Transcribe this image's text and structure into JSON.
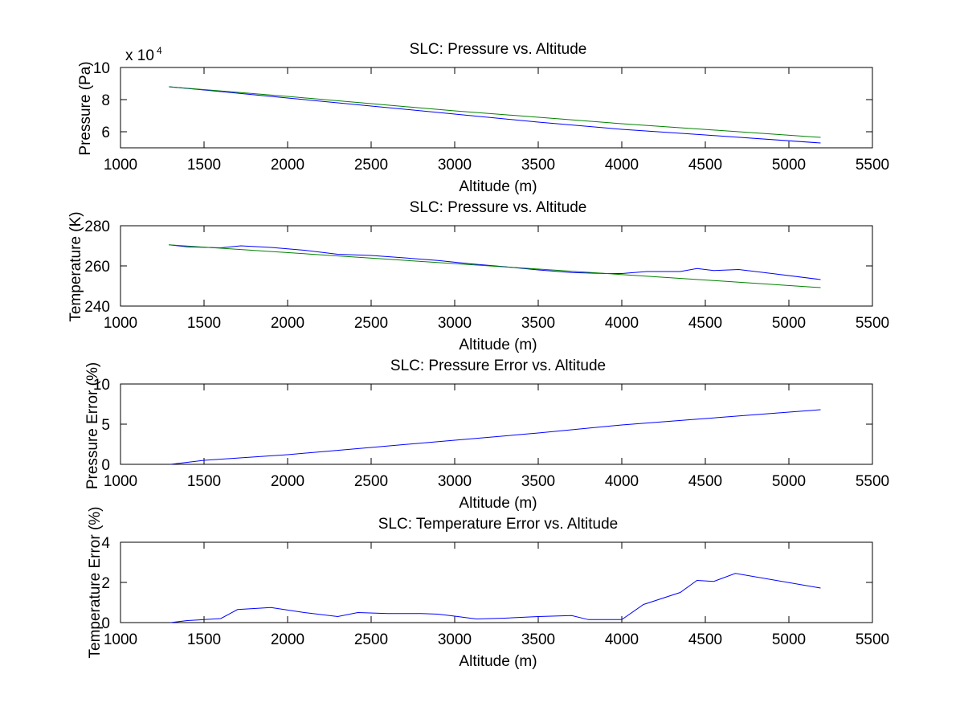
{
  "figure": {
    "background": "#ffffff"
  },
  "chart_data": [
    {
      "type": "line",
      "title": "SLC: Pressure vs. Altitude",
      "xlabel": "Altitude (m)",
      "ylabel": "Pressure (Pa)",
      "y_exponent_base": "x 10",
      "y_exponent_power": "4",
      "y_multiplier": 10000,
      "xlim": [
        1000,
        5500
      ],
      "ylim": [
        5,
        10
      ],
      "xticks": [
        1000,
        1500,
        2000,
        2500,
        3000,
        3500,
        4000,
        4500,
        5000,
        5500
      ],
      "yticks": [
        6,
        8,
        10
      ],
      "grid": false,
      "series": [
        {
          "color": "#0000ff",
          "x": [
            1290,
            1500,
            1800,
            2000,
            2500,
            3000,
            3500,
            4000,
            4500,
            5190
          ],
          "y": [
            8.8,
            8.6,
            8.3,
            8.1,
            7.6,
            7.1,
            6.6,
            6.15,
            5.8,
            5.3
          ]
        },
        {
          "color": "#008000",
          "x": [
            1290,
            2000,
            3000,
            4000,
            5190
          ],
          "y": [
            8.8,
            8.2,
            7.3,
            6.5,
            5.65
          ]
        }
      ]
    },
    {
      "type": "line",
      "title": "SLC: Pressure vs. Altitude",
      "xlabel": "Altitude (m)",
      "ylabel": "Temperature (K)",
      "xlim": [
        1000,
        5500
      ],
      "ylim": [
        240,
        280
      ],
      "xticks": [
        1000,
        1500,
        2000,
        2500,
        3000,
        3500,
        4000,
        4500,
        5000,
        5500
      ],
      "yticks": [
        240,
        260,
        280
      ],
      "grid": false,
      "series": [
        {
          "color": "#0000ff",
          "x": [
            1290,
            1400,
            1600,
            1720,
            1900,
            2100,
            2300,
            2500,
            2700,
            2900,
            3100,
            3300,
            3500,
            3700,
            3900,
            4000,
            4150,
            4350,
            4450,
            4550,
            4700,
            4900,
            5190
          ],
          "y": [
            270.5,
            269.5,
            269.0,
            270.0,
            269.2,
            267.8,
            265.8,
            265.2,
            264.0,
            262.7,
            261.0,
            259.6,
            258.0,
            256.7,
            256.2,
            256.2,
            257.2,
            257.2,
            258.7,
            257.7,
            258.2,
            256.2,
            253.2
          ]
        },
        {
          "color": "#008000",
          "x": [
            1290,
            5190
          ],
          "y": [
            270.5,
            249.2
          ]
        }
      ]
    },
    {
      "type": "line",
      "title": "SLC: Pressure Error vs. Altitude",
      "xlabel": "Altitude (m)",
      "ylabel": "Pressure Error (%)",
      "xlim": [
        1000,
        5500
      ],
      "ylim": [
        0,
        10
      ],
      "xticks": [
        1000,
        1500,
        2000,
        2500,
        3000,
        3500,
        4000,
        4500,
        5000,
        5500
      ],
      "yticks": [
        0,
        5,
        10
      ],
      "grid": false,
      "series": [
        {
          "color": "#0000ff",
          "x": [
            1300,
            1500,
            2000,
            2500,
            3000,
            3500,
            4000,
            4500,
            5000,
            5190
          ],
          "y": [
            0.0,
            0.5,
            1.2,
            2.1,
            3.0,
            3.9,
            4.9,
            5.7,
            6.5,
            6.8
          ]
        }
      ]
    },
    {
      "type": "line",
      "title": "SLC: Temperature Error vs. Altitude",
      "xlabel": "Altitude (m)",
      "ylabel": "Temperature Error (%)",
      "xlim": [
        1000,
        5500
      ],
      "ylim": [
        0,
        4
      ],
      "xticks": [
        1000,
        1500,
        2000,
        2500,
        3000,
        3500,
        4000,
        4500,
        5000,
        5500
      ],
      "yticks": [
        0,
        2,
        4
      ],
      "grid": false,
      "series": [
        {
          "color": "#0000ff",
          "x": [
            1300,
            1400,
            1600,
            1700,
            1900,
            2100,
            2300,
            2420,
            2600,
            2800,
            2900,
            3000,
            3130,
            3300,
            3500,
            3700,
            3800,
            4000,
            4130,
            4350,
            4450,
            4550,
            4680,
            5190
          ],
          "y": [
            0.0,
            0.1,
            0.2,
            0.65,
            0.75,
            0.5,
            0.3,
            0.5,
            0.45,
            0.45,
            0.42,
            0.32,
            0.18,
            0.22,
            0.3,
            0.35,
            0.15,
            0.15,
            0.9,
            1.5,
            2.1,
            2.05,
            2.45,
            1.72
          ]
        }
      ]
    }
  ]
}
